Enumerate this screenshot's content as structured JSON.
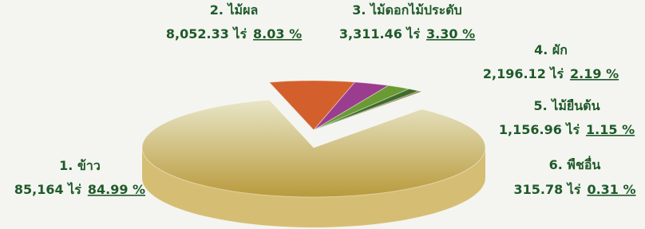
{
  "chart_data": {
    "type": "pie",
    "categories": [
      "1. ข้าว",
      "2. ไม้ผล",
      "3. ไม้ดอกไม้ประดับ",
      "4. ผัก",
      "5. ไม้ยืนต้น",
      "6. พืชอื่น"
    ],
    "area_labels": [
      "85,164 ไร่",
      "8,052.33 ไร่",
      "3,311.46 ไร่",
      "2,196.12 ไร่",
      "1,156.96 ไร่",
      "315.78 ไร่"
    ],
    "values": [
      84.99,
      8.03,
      3.3,
      2.19,
      1.15,
      0.31
    ],
    "value_labels": [
      "84.99 %",
      "8.03 %",
      "3.30 %",
      "2.19 %",
      "1.15 %",
      "0.31 %"
    ],
    "colors": [
      "#cdb055",
      "#d3602c",
      "#9b3d8f",
      "#6a9a32",
      "#3f6d2b",
      "#8a6d3b"
    ]
  }
}
